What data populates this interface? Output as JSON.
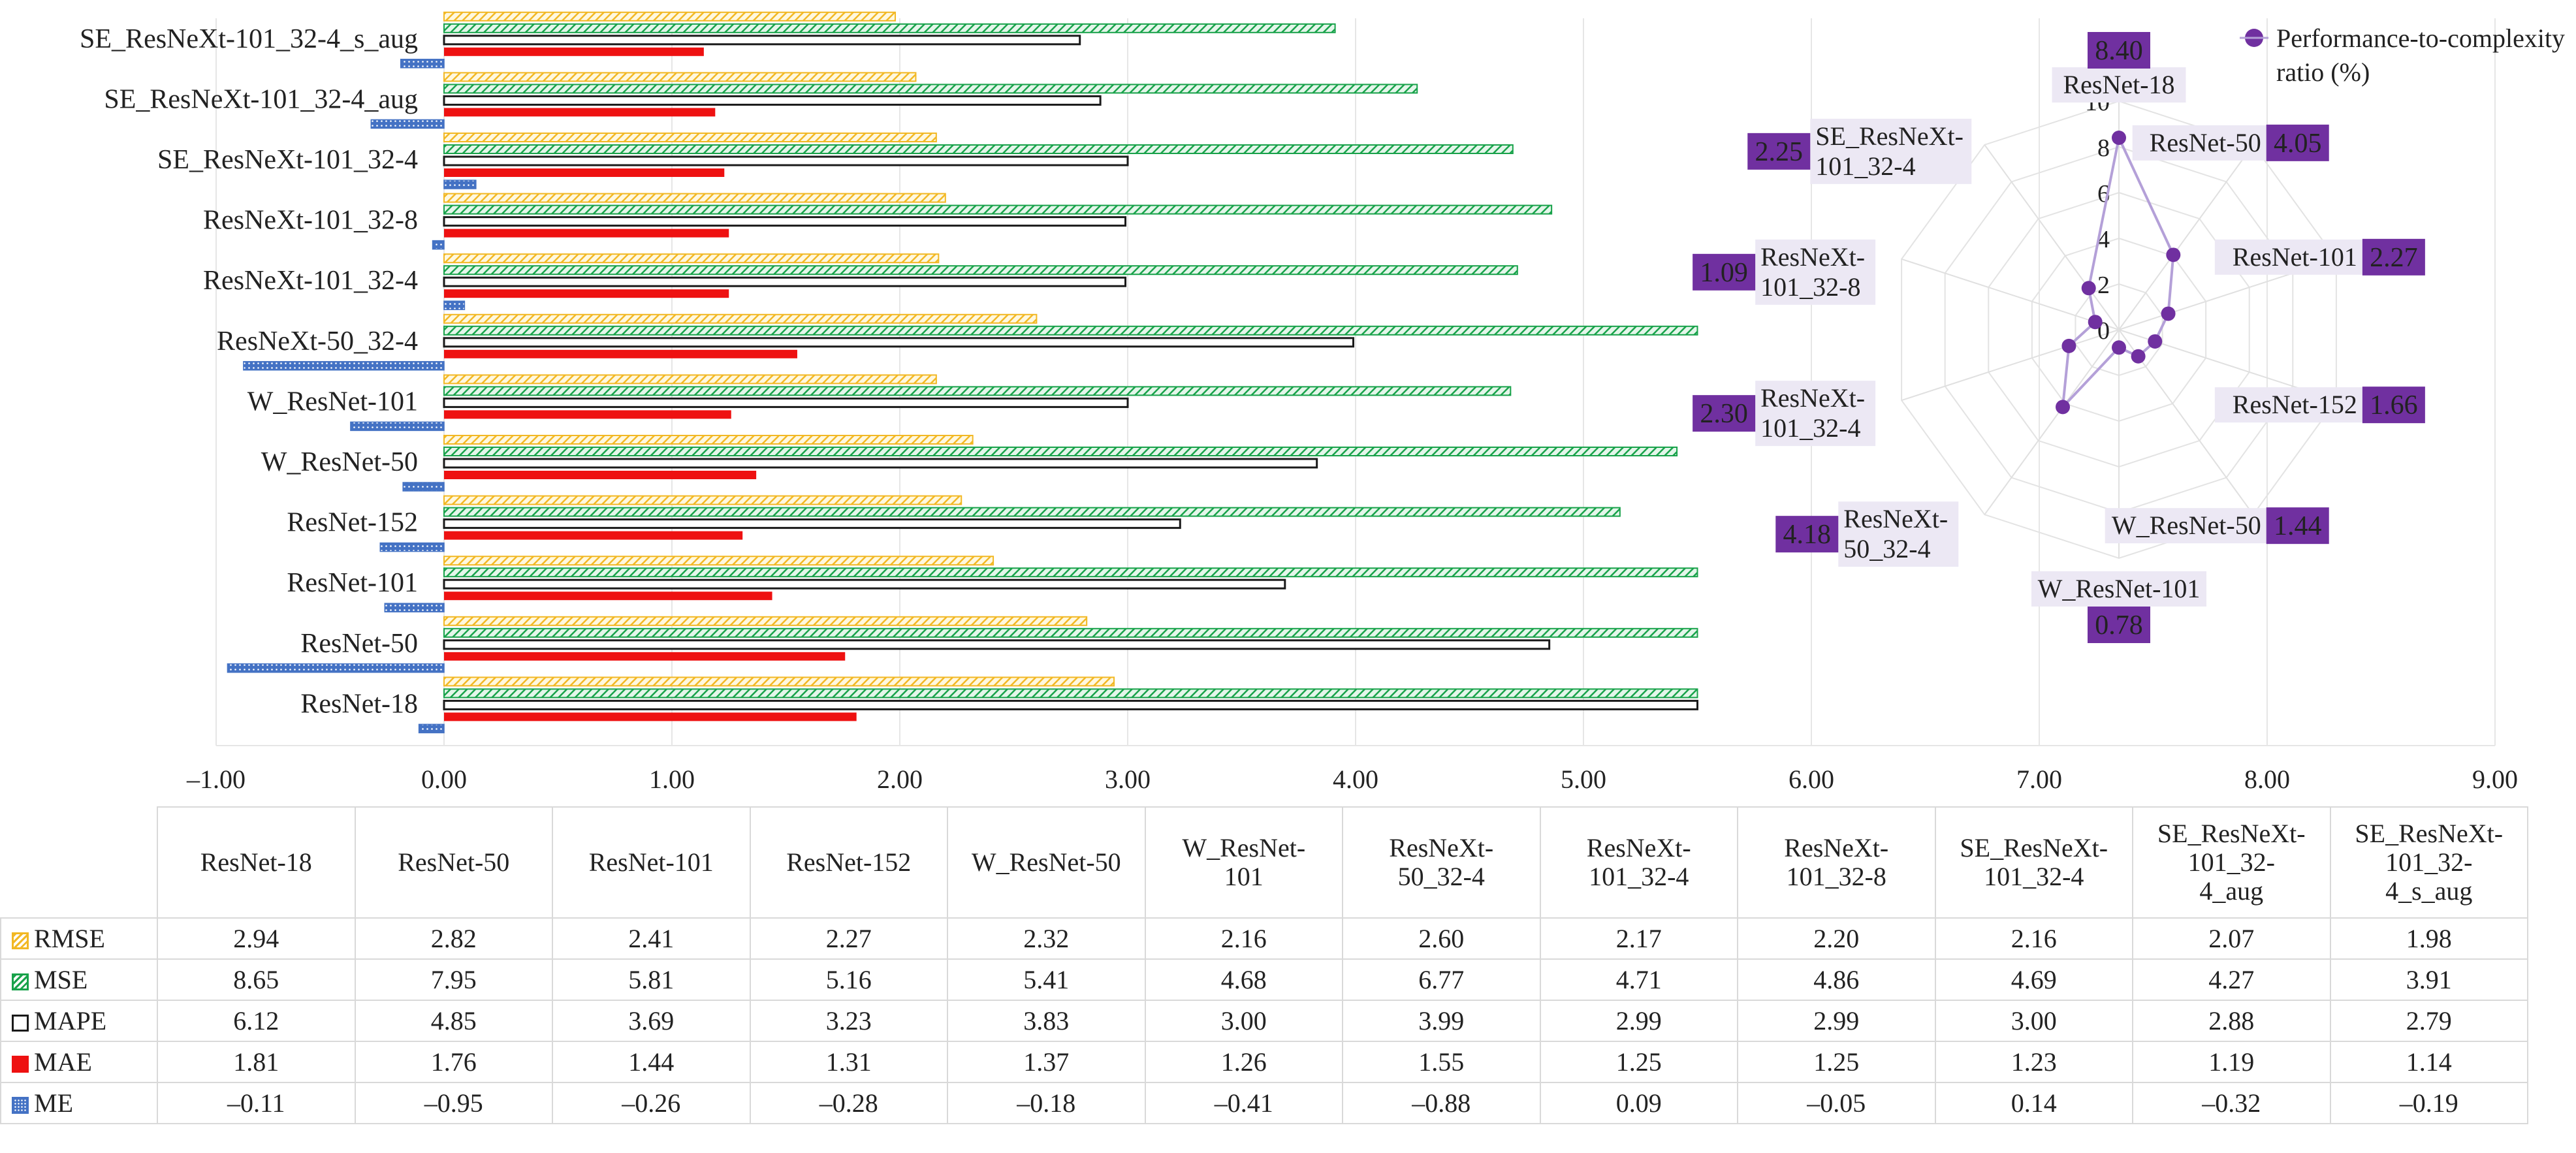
{
  "chart_data": [
    {
      "type": "bar",
      "orientation": "horizontal",
      "categories": [
        "ResNet-18",
        "ResNet-50",
        "ResNet-101",
        "ResNet-152",
        "W_ResNet-50",
        "W_ResNet-101",
        "ResNeXt-50_32-4",
        "ResNeXt-101_32-4",
        "ResNeXt-101_32-8",
        "SE_ResNeXt-101_32-4",
        "SE_ResNeXt-101_32-4_aug",
        "SE_ResNeXt-101_32-4_s_aug"
      ],
      "table_headers": [
        "ResNet-18",
        "ResNet-50",
        "ResNet-101",
        "ResNet-152",
        "W_ResNet-50",
        "W_ResNet-101",
        "ResNeXt-50_32-4",
        "ResNeXt-101_32-4",
        "ResNeXt-101_32-8",
        "SE_ResNeXt-101_32-4",
        "SE_ResNeXt-101_32-4_aug",
        "SE_ResNeXt-101_32-4_s_aug"
      ],
      "series": [
        {
          "name": "RMSE",
          "color": "#f2b824",
          "pattern": "hatch",
          "values": [
            2.94,
            2.82,
            2.41,
            2.27,
            2.32,
            2.16,
            2.6,
            2.17,
            2.2,
            2.16,
            2.07,
            1.98
          ],
          "labels": [
            "2.94",
            "2.82",
            "2.41",
            "2.27",
            "2.32",
            "2.16",
            "2.60",
            "2.17",
            "2.20",
            "2.16",
            "2.07",
            "1.98"
          ]
        },
        {
          "name": "MSE",
          "color": "#18a24a",
          "pattern": "hatch",
          "values": [
            8.65,
            7.95,
            5.81,
            5.16,
            5.41,
            4.68,
            6.77,
            4.71,
            4.86,
            4.69,
            4.27,
            3.91
          ],
          "labels": [
            "8.65",
            "7.95",
            "5.81",
            "5.16",
            "5.41",
            "4.68",
            "6.77",
            "4.71",
            "4.86",
            "4.69",
            "4.27",
            "3.91"
          ]
        },
        {
          "name": "MAPE",
          "color": "#1a1a1a",
          "pattern": "outline",
          "values": [
            6.12,
            4.85,
            3.69,
            3.23,
            3.83,
            3.0,
            3.99,
            2.99,
            2.99,
            3.0,
            2.88,
            2.79
          ],
          "labels": [
            "6.12",
            "4.85",
            "3.69",
            "3.23",
            "3.83",
            "3.00",
            "3.99",
            "2.99",
            "2.99",
            "3.00",
            "2.88",
            "2.79"
          ]
        },
        {
          "name": "MAE",
          "color": "#ee1111",
          "pattern": "solid",
          "values": [
            1.81,
            1.76,
            1.44,
            1.31,
            1.37,
            1.26,
            1.55,
            1.25,
            1.25,
            1.23,
            1.19,
            1.14
          ],
          "labels": [
            "1.81",
            "1.76",
            "1.44",
            "1.31",
            "1.37",
            "1.26",
            "1.55",
            "1.25",
            "1.25",
            "1.23",
            "1.19",
            "1.14"
          ]
        },
        {
          "name": "ME",
          "color": "#4472c4",
          "pattern": "dots",
          "values": [
            -0.11,
            -0.95,
            -0.26,
            -0.28,
            -0.18,
            -0.41,
            -0.88,
            0.09,
            -0.05,
            0.14,
            -0.32,
            -0.19
          ],
          "labels": [
            "–0.11",
            "–0.95",
            "–0.26",
            "–0.28",
            "–0.18",
            "–0.41",
            "–0.88",
            "0.09",
            "–0.05",
            "0.14",
            "–0.32",
            "–0.19"
          ]
        }
      ],
      "xlim": [
        -1.0,
        9.0
      ],
      "xticks": [
        -1,
        0,
        1,
        2,
        3,
        4,
        5,
        6,
        7,
        8,
        9
      ],
      "xtick_labels": [
        "–1.00",
        "0.00",
        "1.00",
        "2.00",
        "3.00",
        "4.00",
        "5.00",
        "6.00",
        "7.00",
        "8.00",
        "9.00"
      ],
      "visible_clip_max": 5.5,
      "grid": true,
      "legend": "data-table-bottom"
    },
    {
      "type": "radar",
      "legend_label": "Performance-to-complexity ratio (%)",
      "color": "#7030a0",
      "line_color": "#b4a0d8",
      "rlim": [
        0,
        10
      ],
      "rticks": [
        0,
        2,
        4,
        6,
        8,
        10
      ],
      "rtick_labels": [
        "0",
        "2",
        "4",
        "6",
        "8",
        "10"
      ],
      "axes": [
        {
          "label": "ResNet-18",
          "value": 8.4,
          "value_label": "8.40"
        },
        {
          "label": "ResNet-50",
          "value": 4.05,
          "value_label": "4.05"
        },
        {
          "label": "ResNet-101",
          "value": 2.27,
          "value_label": "2.27"
        },
        {
          "label": "ResNet-152",
          "value": 1.66,
          "value_label": "1.66"
        },
        {
          "label": "W_ResNet-50",
          "value": 1.44,
          "value_label": "1.44"
        },
        {
          "label": "W_ResNet-101",
          "value": 0.78,
          "value_label": "0.78"
        },
        {
          "label": "ResNeXt-50_32-4",
          "value": 4.18,
          "value_label": "4.18"
        },
        {
          "label": "ResNeXt-101_32-4",
          "value": 2.3,
          "value_label": "2.30"
        },
        {
          "label": "ResNeXt-101_32-8",
          "value": 1.09,
          "value_label": "1.09"
        },
        {
          "label": "SE_ResNeXt-101_32-4",
          "value": 2.25,
          "value_label": "2.25"
        }
      ]
    }
  ]
}
